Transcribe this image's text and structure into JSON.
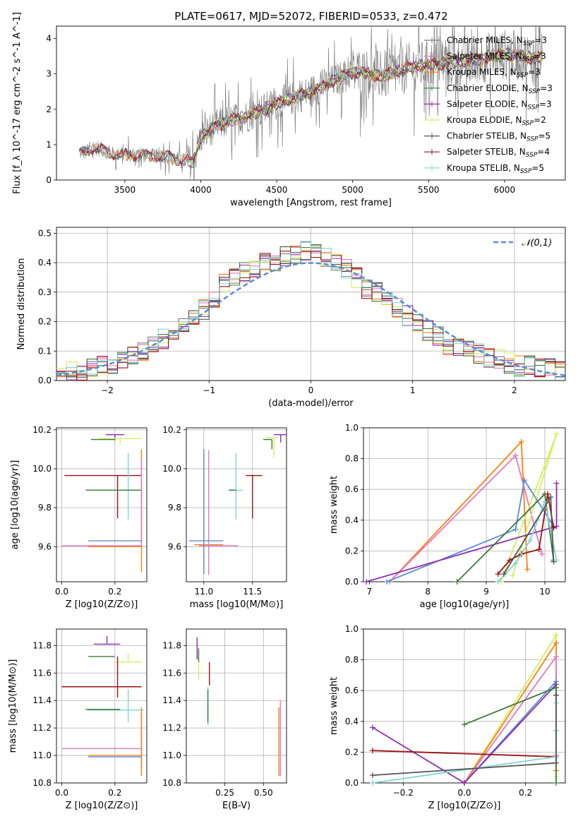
{
  "title": "PLATE=0617, MJD=52072, FIBERID=0533, z=0.472",
  "legend_labels": [
    {
      "name": "Chabrier MILES",
      "nssp": "3",
      "color": "#7f7f7f"
    },
    {
      "name": "Salpeter MILES",
      "nssp": "3",
      "color": "#e377c2"
    },
    {
      "name": "Kroupa MILES",
      "nssp": "3",
      "color": "#ff7f0e"
    },
    {
      "name": "Chabrier ELODIE",
      "nssp": "3",
      "color": "#3a7a3a"
    },
    {
      "name": "Salpeter ELODIE",
      "nssp": "3",
      "color": "#8e2cb3"
    },
    {
      "name": "Kroupa ELODIE",
      "nssp": "2",
      "color": "#d4ef5a"
    },
    {
      "name": "Chabrier STELIB",
      "nssp": "5",
      "color": "#555555"
    },
    {
      "name": "Salpeter STELIB",
      "nssp": "4",
      "color": "#9b1111"
    },
    {
      "name": "Kroupa STELIB",
      "nssp": "5",
      "color": "#7fd6d6"
    }
  ],
  "chart_data": [
    {
      "id": "spectrum",
      "type": "line",
      "xlabel": "wavelength [Angstrom, rest frame]",
      "ylabel": "Flux [f_λ 10^-17 erg cm^-2 s^-1 A^-1]",
      "xlim": [
        3050,
        6400
      ],
      "ylim": [
        0,
        4.35
      ],
      "xticks": [
        3500,
        4000,
        4500,
        5000,
        5500,
        6000
      ],
      "yticks": [
        0,
        1,
        2,
        3,
        4
      ],
      "grid": false,
      "legend_position": "upper-right",
      "series_model_trend": {
        "x": [
          3200,
          3300,
          3450,
          3600,
          3800,
          3950,
          4000,
          4100,
          4300,
          4500,
          4700,
          4900,
          5000,
          5200,
          5400,
          5600,
          5800,
          6000,
          6200
        ],
        "y": [
          0.75,
          0.9,
          0.72,
          0.72,
          0.65,
          0.5,
          1.2,
          1.55,
          1.8,
          2.15,
          2.45,
          2.85,
          3.05,
          2.95,
          3.2,
          3.3,
          3.4,
          3.55,
          3.45
        ]
      }
    },
    {
      "id": "residuals",
      "type": "step",
      "xlabel": "(data-model)/error",
      "ylabel": "Normed distribution",
      "xlim": [
        -2.5,
        2.5
      ],
      "ylim": [
        0,
        0.52
      ],
      "xticks": [
        -2,
        -1,
        0,
        1,
        2
      ],
      "yticks": [
        0.0,
        0.1,
        0.2,
        0.3,
        0.4,
        0.5
      ],
      "grid": true,
      "legend": "𝒩(0,1)",
      "legend_position": "upper-right",
      "bins": [
        -2.45,
        -2.35,
        -2.25,
        -2.15,
        -2.05,
        -1.95,
        -1.85,
        -1.75,
        -1.65,
        -1.55,
        -1.45,
        -1.35,
        -1.25,
        -1.15,
        -1.05,
        -0.95,
        -0.85,
        -0.75,
        -0.65,
        -0.55,
        -0.45,
        -0.35,
        -0.25,
        -0.15,
        -0.05,
        0.05,
        0.15,
        0.25,
        0.35,
        0.45,
        0.55,
        0.65,
        0.75,
        0.85,
        0.95,
        1.05,
        1.15,
        1.25,
        1.35,
        1.45,
        1.55,
        1.65,
        1.75,
        1.85,
        1.95,
        2.05,
        2.15,
        2.25,
        2.35,
        2.45
      ],
      "values": [
        0.02,
        0.03,
        0.03,
        0.04,
        0.05,
        0.05,
        0.07,
        0.08,
        0.1,
        0.12,
        0.14,
        0.16,
        0.2,
        0.22,
        0.24,
        0.28,
        0.33,
        0.35,
        0.37,
        0.38,
        0.4,
        0.4,
        0.42,
        0.43,
        0.44,
        0.45,
        0.42,
        0.4,
        0.38,
        0.35,
        0.31,
        0.3,
        0.29,
        0.25,
        0.22,
        0.19,
        0.17,
        0.15,
        0.12,
        0.11,
        0.1,
        0.09,
        0.08,
        0.07,
        0.06,
        0.05,
        0.05,
        0.04,
        0.04,
        0.03
      ],
      "gaussian": {
        "mean": 0,
        "sigma": 1
      }
    },
    {
      "id": "age_vs_Z",
      "type": "errorbar",
      "xlabel": "Z [log10(Z/Z⊙)]",
      "ylabel": "age [log10(age/yr)]",
      "xlim": [
        -0.02,
        0.32
      ],
      "ylim": [
        9.42,
        10.21
      ],
      "xticks": [
        0.0,
        0.2
      ],
      "yticks": [
        9.6,
        9.8,
        10.0,
        10.2
      ],
      "grid": true,
      "points": [
        {
          "x": 0.2,
          "y": 10.175,
          "xerr": [
            0.035,
            0.035
          ],
          "yerr": [
            0.03,
            0.0
          ],
          "color": "#8e2cb3"
        },
        {
          "x": 0.22,
          "y": 10.155,
          "xerr": [
            0.08,
            0.08
          ],
          "yerr": [
            0.03,
            0.0
          ],
          "color": "#d4ef5a"
        },
        {
          "x": 0.2,
          "y": 10.15,
          "xerr": [
            0.09,
            0.0
          ],
          "yerr": [
            0.0,
            0.0
          ],
          "color": "#3a7a3a"
        },
        {
          "x": 0.21,
          "y": 9.965,
          "xerr": [
            0.2,
            0.09
          ],
          "yerr": [
            0.22,
            0.0
          ],
          "color": "#9b1111"
        },
        {
          "x": 0.25,
          "y": 9.89,
          "xerr": [
            0.14,
            0.05
          ],
          "yerr": [
            0.15,
            0.19
          ],
          "color": "#7fd6d6"
        },
        {
          "x": 0.22,
          "y": 9.89,
          "xerr": [
            0.13,
            0.08
          ],
          "yerr": [
            0.0,
            0.0
          ],
          "color": "#3a7a3a"
        },
        {
          "x": 0.3,
          "y": 9.6,
          "xerr": [
            0.2,
            0.0
          ],
          "yerr": [
            0.13,
            0.5
          ],
          "color": "#ff7f0e"
        },
        {
          "x": 0.3,
          "y": 9.605,
          "xerr": [
            0.3,
            0.0
          ],
          "yerr": [
            0.0,
            0.45
          ],
          "color": "#e377c2"
        },
        {
          "x": 0.3,
          "y": 9.63,
          "xerr": [
            0.2,
            0.0
          ],
          "yerr": [
            0.0,
            0.0
          ],
          "color": "#5b8bd8"
        }
      ]
    },
    {
      "id": "age_vs_mass",
      "type": "errorbar",
      "xlabel": "mass [log10(M/M⊙)]",
      "ylabel": "",
      "xlim": [
        10.82,
        11.85
      ],
      "ylim": [
        9.42,
        10.21
      ],
      "xticks": [
        11.0,
        11.5
      ],
      "yticks": [
        9.6,
        9.8,
        10.0,
        10.2
      ],
      "grid": true,
      "points": [
        {
          "x": 11.79,
          "y": 10.175,
          "xerr": [
            0.07,
            0.07
          ],
          "yerr": [
            0.04,
            0.0
          ],
          "color": "#8e2cb3"
        },
        {
          "x": 11.72,
          "y": 10.16,
          "xerr": [
            0.08,
            0.05
          ],
          "yerr": [
            0.1,
            0.0
          ],
          "color": "#d4ef5a"
        },
        {
          "x": 11.7,
          "y": 10.15,
          "xerr": [
            0.09,
            0.0
          ],
          "yerr": [
            0.05,
            0.0
          ],
          "color": "#3a7a3a"
        },
        {
          "x": 11.5,
          "y": 9.965,
          "xerr": [
            0.07,
            0.1
          ],
          "yerr": [
            0.22,
            0.0
          ],
          "color": "#9b1111"
        },
        {
          "x": 11.33,
          "y": 9.89,
          "xerr": [
            0.08,
            0.07
          ],
          "yerr": [
            0.15,
            0.19
          ],
          "color": "#7fd6d6"
        },
        {
          "x": 11.33,
          "y": 9.89,
          "xerr": [
            0.07,
            0.0
          ],
          "yerr": [
            0.0,
            0.0
          ],
          "color": "#3a7a3a"
        },
        {
          "x": 11.0,
          "y": 9.61,
          "xerr": [
            0.1,
            0.2
          ],
          "yerr": [
            0.15,
            0.49
          ],
          "color": "#ff7f0e"
        },
        {
          "x": 11.05,
          "y": 9.605,
          "xerr": [
            0.1,
            0.3
          ],
          "yerr": [
            0.15,
            0.49
          ],
          "color": "#e377c2"
        },
        {
          "x": 11.0,
          "y": 9.63,
          "xerr": [
            0.15,
            0.2
          ],
          "yerr": [
            0.17,
            0.47
          ],
          "color": "#5b8bd8"
        }
      ]
    },
    {
      "id": "weight_vs_age",
      "type": "line",
      "xlabel": "age [log10(age/yr)]",
      "ylabel": "mass weight",
      "xlim": [
        6.9,
        10.35
      ],
      "ylim": [
        0,
        1.0
      ],
      "xticks": [
        7,
        8,
        9,
        10
      ],
      "yticks": [
        0.0,
        0.2,
        0.4,
        0.6,
        0.8,
        1.0
      ],
      "grid": true,
      "series": [
        {
          "color": "#ff7f0e",
          "x": [
            7.35,
            9.6,
            9.7
          ],
          "y": [
            0.0,
            0.91,
            0.08
          ]
        },
        {
          "color": "#e377c2",
          "x": [
            7.35,
            9.5,
            9.95
          ],
          "y": [
            0.0,
            0.82,
            0.18
          ]
        },
        {
          "color": "#d4ef5a",
          "x": [
            9.25,
            10.2,
            9.45
          ],
          "y": [
            0.0,
            0.96,
            0.04
          ]
        },
        {
          "color": "#5b8bd8",
          "x": [
            7.3,
            9.5,
            9.65,
            10.15
          ],
          "y": [
            0.0,
            0.34,
            0.66,
            0.36
          ]
        },
        {
          "color": "#8e2cb3",
          "x": [
            6.95,
            10.2,
            10.2
          ],
          "y": [
            0.0,
            0.36,
            0.64
          ]
        },
        {
          "color": "#3a7a3a",
          "x": [
            8.5,
            10.0,
            10.15
          ],
          "y": [
            0.0,
            0.57,
            0.14
          ]
        },
        {
          "color": "#9b1111",
          "x": [
            9.2,
            9.4,
            9.6,
            9.9,
            10.05,
            10.15
          ],
          "y": [
            0.05,
            0.14,
            0.18,
            0.21,
            0.57,
            0.35
          ]
        },
        {
          "color": "#7fd6d6",
          "x": [
            9.2,
            9.5,
            9.75,
            10.0,
            10.2
          ],
          "y": [
            0.0,
            0.12,
            0.27,
            0.52,
            0.14
          ]
        },
        {
          "color": "#555555",
          "x": [
            9.3,
            10.1,
            10.15
          ],
          "y": [
            0.05,
            0.55,
            0.13
          ]
        }
      ]
    },
    {
      "id": "mass_vs_Z",
      "type": "errorbar",
      "xlabel": "Z [log10(Z/Z⊙)]",
      "ylabel": "mass [log10(M/M⊙)]",
      "xlim": [
        -0.02,
        0.32
      ],
      "ylim": [
        10.8,
        11.92
      ],
      "xticks": [
        0.0,
        0.2
      ],
      "yticks": [
        10.8,
        11.0,
        11.2,
        11.4,
        11.6,
        11.8
      ],
      "grid": true,
      "points": [
        {
          "x": 0.17,
          "y": 11.81,
          "xerr": [
            0.05,
            0.05
          ],
          "yerr": [
            0.0,
            0.06
          ],
          "color": "#8e2cb3"
        },
        {
          "x": 0.25,
          "y": 11.68,
          "xerr": [
            0.05,
            0.05
          ],
          "yerr": [
            0.0,
            0.06
          ],
          "color": "#d4ef5a"
        },
        {
          "x": 0.2,
          "y": 11.72,
          "xerr": [
            0.1,
            0.0
          ],
          "yerr": [
            0.0,
            0.0
          ],
          "color": "#3a7a3a"
        },
        {
          "x": 0.21,
          "y": 11.5,
          "xerr": [
            0.21,
            0.09
          ],
          "yerr": [
            0.08,
            0.22
          ],
          "color": "#9b1111"
        },
        {
          "x": 0.25,
          "y": 11.33,
          "xerr": [
            0.15,
            0.06
          ],
          "yerr": [
            0.09,
            0.15
          ],
          "color": "#7fd6d6"
        },
        {
          "x": 0.22,
          "y": 11.335,
          "xerr": [
            0.13,
            0.0
          ],
          "yerr": [
            0.0,
            0.0
          ],
          "color": "#3a7a3a"
        },
        {
          "x": 0.3,
          "y": 11.05,
          "xerr": [
            0.3,
            0.0
          ],
          "yerr": [
            0.15,
            0.25
          ],
          "color": "#e377c2"
        },
        {
          "x": 0.3,
          "y": 11.0,
          "xerr": [
            0.2,
            0.0
          ],
          "yerr": [
            0.15,
            0.35
          ],
          "color": "#ff7f0e"
        },
        {
          "x": 0.3,
          "y": 10.99,
          "xerr": [
            0.2,
            0.0
          ],
          "yerr": [
            0.0,
            0.0
          ],
          "color": "#5b8bd8"
        }
      ]
    },
    {
      "id": "mass_vs_ebv",
      "type": "errorbar",
      "xlabel": "E(B-V)",
      "ylabel": "",
      "xlim": [
        0.0,
        0.65
      ],
      "ylim": [
        10.8,
        11.92
      ],
      "xticks": [
        0.25,
        0.5
      ],
      "yticks": [
        10.8,
        11.0,
        11.2,
        11.4,
        11.6,
        11.8
      ],
      "grid": true,
      "points": [
        {
          "x": 0.07,
          "y": 11.8,
          "xerr": [
            0,
            0
          ],
          "yerr": [
            0.1,
            0.06
          ],
          "color": "#8e2cb3"
        },
        {
          "x": 0.08,
          "y": 11.65,
          "xerr": [
            0,
            0
          ],
          "yerr": [
            0.1,
            0.1
          ],
          "color": "#d4ef5a"
        },
        {
          "x": 0.08,
          "y": 11.73,
          "xerr": [
            0,
            0
          ],
          "yerr": [
            0.05,
            0.05
          ],
          "color": "#3a7a3a"
        },
        {
          "x": 0.15,
          "y": 11.6,
          "xerr": [
            0,
            0
          ],
          "yerr": [
            0.09,
            0.08
          ],
          "color": "#9b1111"
        },
        {
          "x": 0.14,
          "y": 11.36,
          "xerr": [
            0,
            0
          ],
          "yerr": [
            0.14,
            0.14
          ],
          "color": "#7fd6d6"
        },
        {
          "x": 0.14,
          "y": 11.36,
          "xerr": [
            0,
            0
          ],
          "yerr": [
            0.12,
            0.12
          ],
          "color": "#3a7a3a"
        },
        {
          "x": 0.61,
          "y": 11.1,
          "xerr": [
            0,
            0
          ],
          "yerr": [
            0.25,
            0.3
          ],
          "color": "#e377c2"
        },
        {
          "x": 0.6,
          "y": 11.1,
          "xerr": [
            0,
            0
          ],
          "yerr": [
            0.25,
            0.25
          ],
          "color": "#ff7f0e"
        }
      ]
    },
    {
      "id": "weight_vs_Z",
      "type": "line",
      "xlabel": "Z [log10(Z/Z⊙)]",
      "ylabel": "mass weight",
      "xlim": [
        -0.33,
        0.33
      ],
      "ylim": [
        0,
        1.0
      ],
      "xticks": [
        -0.2,
        0.0,
        0.2
      ],
      "yticks": [
        0.0,
        0.2,
        0.4,
        0.6,
        0.8,
        1.0
      ],
      "grid": true,
      "series": [
        {
          "color": "#d4ef5a",
          "x": [
            0.0,
            0.3,
            0.3
          ],
          "y": [
            0.0,
            0.96,
            0.04
          ]
        },
        {
          "color": "#ff7f0e",
          "x": [
            0.0,
            0.3,
            0.3
          ],
          "y": [
            0.0,
            0.91,
            0.08
          ]
        },
        {
          "color": "#e377c2",
          "x": [
            0.0,
            0.3,
            0.3
          ],
          "y": [
            0.0,
            0.82,
            0.18
          ]
        },
        {
          "color": "#5b8bd8",
          "x": [
            0.0,
            0.3,
            0.3
          ],
          "y": [
            0.0,
            0.66,
            0.34
          ]
        },
        {
          "color": "#8e2cb3",
          "x": [
            -0.3,
            0.0,
            0.3,
            0.3
          ],
          "y": [
            0.36,
            0.0,
            0.64,
            0.62
          ]
        },
        {
          "color": "#3a7a3a",
          "x": [
            0.0,
            0.3,
            0.3
          ],
          "y": [
            0.38,
            0.62,
            0.0
          ]
        },
        {
          "color": "#9b1111",
          "x": [
            -0.3,
            0.3,
            0.3
          ],
          "y": [
            0.21,
            0.17,
            0.57
          ]
        },
        {
          "color": "#7fd6d6",
          "x": [
            -0.3,
            0.3,
            0.3,
            0.3
          ],
          "y": [
            0.0,
            0.17,
            0.34,
            0.52
          ]
        },
        {
          "color": "#555555",
          "x": [
            -0.3,
            0.3,
            0.3
          ],
          "y": [
            0.05,
            0.13,
            0.57
          ]
        }
      ]
    }
  ]
}
